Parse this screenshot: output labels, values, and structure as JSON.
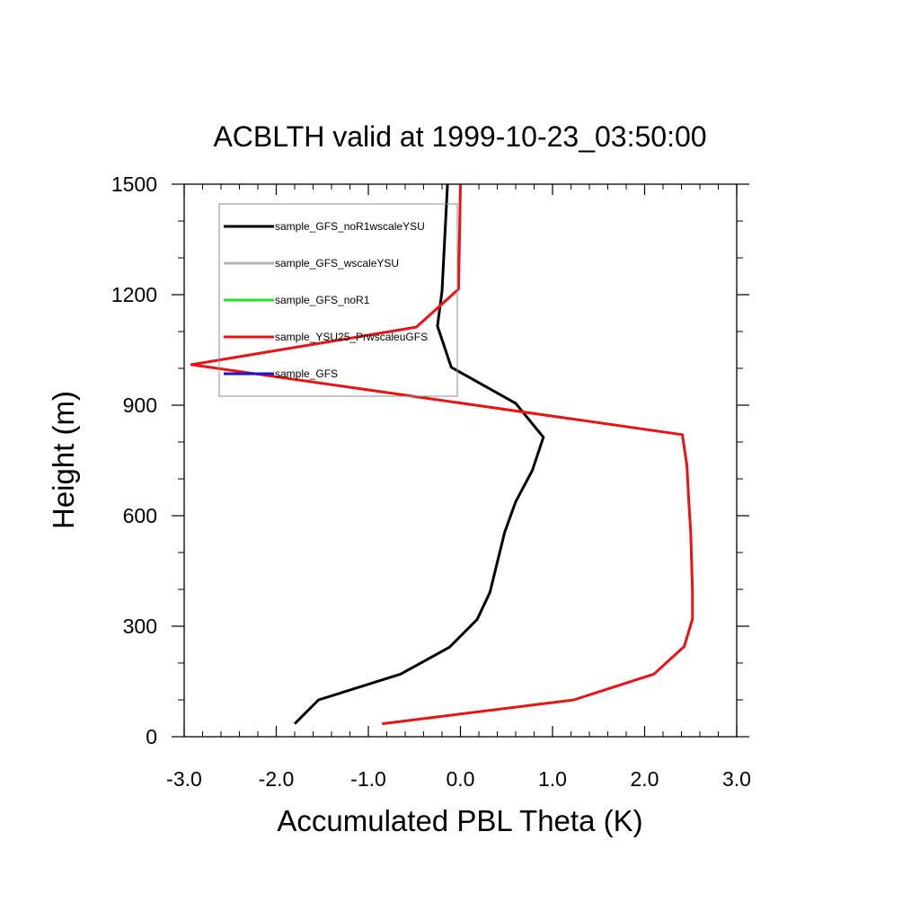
{
  "chart_data": {
    "type": "line",
    "title": "ACBLTH valid at 1999-10-23_03:50:00",
    "xlabel": "Accumulated PBL Theta (K)",
    "ylabel": "Height (m)",
    "xlim": [
      -3.0,
      3.0
    ],
    "ylim": [
      0,
      1500
    ],
    "xticks": [
      "-3.0",
      "-2.0",
      "-1.0",
      "0.0",
      "1.0",
      "2.0",
      "3.0"
    ],
    "yticks": [
      "0",
      "300",
      "600",
      "900",
      "1200",
      "1500"
    ],
    "legend_position": "top-left",
    "grid": false,
    "series": [
      {
        "name": "sample_GFS_noR1wscaleYSU",
        "color": "#000000",
        "points": [
          [
            -1.8,
            35
          ],
          [
            -1.54,
            100
          ],
          [
            -0.65,
            170
          ],
          [
            -0.12,
            243
          ],
          [
            0.18,
            318
          ],
          [
            0.32,
            392
          ],
          [
            0.48,
            555
          ],
          [
            0.6,
            638
          ],
          [
            0.78,
            723
          ],
          [
            0.9,
            813
          ],
          [
            0.6,
            905
          ],
          [
            -0.1,
            1003
          ],
          [
            -0.25,
            1115
          ],
          [
            -0.2,
            1210
          ],
          [
            -0.14,
            1500
          ]
        ]
      },
      {
        "name": "sample_GFS_wscaleYSU",
        "color": "#b5b5b5",
        "points": []
      },
      {
        "name": "sample_GFS_noR1",
        "color": "#1ee51e",
        "points": []
      },
      {
        "name": "sample_YSU25_PrwscaleuGFS",
        "color": "#ee1111",
        "points": [
          [
            -0.85,
            35
          ],
          [
            1.23,
            100
          ],
          [
            2.1,
            170
          ],
          [
            2.43,
            245
          ],
          [
            2.52,
            320
          ],
          [
            2.52,
            390
          ],
          [
            2.5,
            555
          ],
          [
            2.48,
            638
          ],
          [
            2.46,
            735
          ],
          [
            2.41,
            820
          ],
          [
            -2.92,
            1010
          ],
          [
            -0.48,
            1112
          ],
          [
            -0.02,
            1215
          ],
          [
            0.0,
            1500
          ]
        ]
      },
      {
        "name": "sample_GFS",
        "color": "#1515cc",
        "points": []
      }
    ]
  }
}
